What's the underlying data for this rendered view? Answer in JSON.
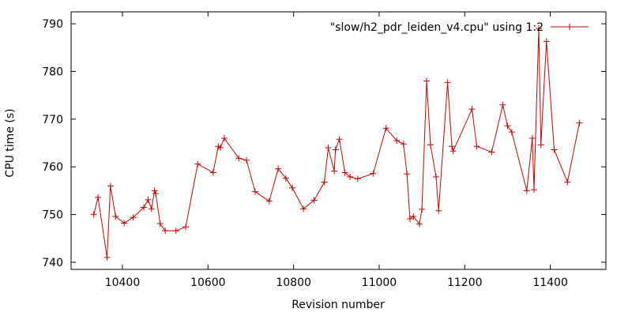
{
  "chart_data": {
    "type": "line",
    "title": "",
    "xlabel": "Revision number",
    "ylabel": "CPU time (s)",
    "xlim": [
      10280,
      11530
    ],
    "ylim": [
      738.5,
      792.5
    ],
    "xticks": [
      10400,
      10600,
      10800,
      11000,
      11200,
      11400
    ],
    "yticks": [
      740,
      750,
      760,
      770,
      780,
      790
    ],
    "grid": false,
    "legend_position": "top-right",
    "series": [
      {
        "name": "\"slow/h2_pdr_leiden_v4.cpu\" using 1:2",
        "color": "#cc0000",
        "marker": "plus",
        "points": [
          [
            10333,
            750.0
          ],
          [
            10343,
            753.6
          ],
          [
            10364,
            741.0
          ],
          [
            10372,
            756.0
          ],
          [
            10384,
            749.6
          ],
          [
            10404,
            748.2
          ],
          [
            10425,
            749.4
          ],
          [
            10450,
            751.5
          ],
          [
            10460,
            753.1
          ],
          [
            10468,
            751.2
          ],
          [
            10475,
            755.0
          ],
          [
            10478,
            754.4
          ],
          [
            10488,
            748.1
          ],
          [
            10500,
            746.6
          ],
          [
            10525,
            746.6
          ],
          [
            10548,
            747.4
          ],
          [
            10576,
            760.6
          ],
          [
            10612,
            758.8
          ],
          [
            10624,
            764.3
          ],
          [
            10629,
            764.0
          ],
          [
            10638,
            766.0
          ],
          [
            10672,
            761.8
          ],
          [
            10690,
            761.4
          ],
          [
            10710,
            754.8
          ],
          [
            10743,
            752.8
          ],
          [
            10764,
            759.6
          ],
          [
            10782,
            757.6
          ],
          [
            10797,
            755.6
          ],
          [
            10823,
            751.2
          ],
          [
            10848,
            753.0
          ],
          [
            10872,
            756.8
          ],
          [
            10881,
            764.0
          ],
          [
            10895,
            759.1
          ],
          [
            10898,
            763.6
          ],
          [
            10907,
            765.8
          ],
          [
            10920,
            758.8
          ],
          [
            10932,
            757.9
          ],
          [
            10950,
            757.5
          ],
          [
            10986,
            758.6
          ],
          [
            11016,
            768.1
          ],
          [
            11041,
            765.5
          ],
          [
            11057,
            764.8
          ],
          [
            11065,
            758.5
          ],
          [
            11072,
            749.1
          ],
          [
            11080,
            749.6
          ],
          [
            11094,
            748.0
          ],
          [
            11100,
            751.1
          ],
          [
            11111,
            778.0
          ],
          [
            11120,
            764.6
          ],
          [
            11133,
            757.9
          ],
          [
            11139,
            750.8
          ],
          [
            11160,
            777.7
          ],
          [
            11170,
            764.3
          ],
          [
            11173,
            763.3
          ],
          [
            11217,
            772.1
          ],
          [
            11228,
            764.3
          ],
          [
            11263,
            763.1
          ],
          [
            11289,
            773.0
          ],
          [
            11300,
            768.6
          ],
          [
            11310,
            767.3
          ],
          [
            11345,
            755.0
          ],
          [
            11358,
            766.0
          ],
          [
            11362,
            755.2
          ],
          [
            11373,
            789.0
          ],
          [
            11378,
            764.6
          ],
          [
            11391,
            786.3
          ],
          [
            11409,
            763.6
          ],
          [
            11440,
            756.8
          ],
          [
            11468,
            769.2
          ]
        ]
      }
    ]
  }
}
